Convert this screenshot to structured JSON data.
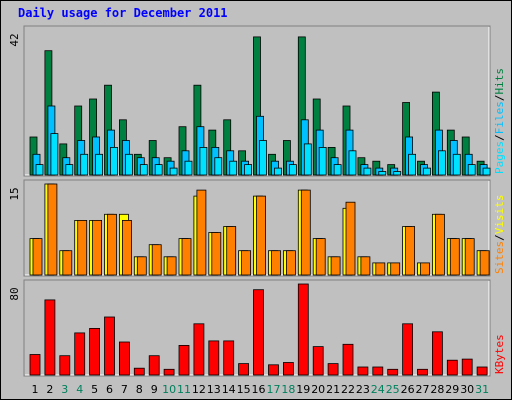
{
  "title": "Daily usage for December 2011",
  "colors": {
    "background": "#c0c0c0",
    "title": "#0000ff",
    "hits": "#008040",
    "files": "#00c0ff",
    "pages": "#00e0ff",
    "visits": "#ffff00",
    "sites": "#ff8000",
    "kbytes": "#ff0000",
    "weekday_label": "#000000",
    "weekend_label": "#00805c"
  },
  "chart_data": [
    {
      "type": "bar",
      "panel": "hits_files_pages",
      "ymax_label": "42",
      "ylim": [
        0,
        42
      ],
      "categories": [
        "1",
        "2",
        "3",
        "4",
        "5",
        "6",
        "7",
        "8",
        "9",
        "10",
        "11",
        "12",
        "13",
        "14",
        "15",
        "16",
        "17",
        "18",
        "19",
        "20",
        "21",
        "22",
        "23",
        "24",
        "25",
        "26",
        "27",
        "28",
        "29",
        "30",
        "31"
      ],
      "side_labels": [
        "Pages",
        "Files",
        "Hits"
      ],
      "series": [
        {
          "name": "Hits",
          "values": [
            11,
            36,
            9,
            20,
            22,
            26,
            16,
            6,
            10,
            5,
            14,
            26,
            13,
            16,
            7,
            40,
            6,
            10,
            40,
            22,
            8,
            20,
            5,
            4,
            3,
            21,
            4,
            24,
            13,
            11,
            4
          ]
        },
        {
          "name": "Files",
          "values": [
            6,
            20,
            5,
            10,
            11,
            13,
            10,
            5,
            5,
            4,
            7,
            14,
            8,
            7,
            4,
            17,
            4,
            4,
            16,
            13,
            5,
            13,
            3,
            2,
            2,
            11,
            3,
            13,
            10,
            6,
            3
          ]
        },
        {
          "name": "Pages",
          "values": [
            3,
            12,
            3,
            6,
            6,
            8,
            6,
            3,
            3,
            2,
            4,
            8,
            5,
            4,
            3,
            10,
            2,
            3,
            9,
            8,
            3,
            7,
            2,
            1,
            1,
            6,
            2,
            7,
            6,
            3,
            2
          ]
        }
      ]
    },
    {
      "type": "bar",
      "panel": "visits_sites",
      "ymax_label": "15",
      "ylim": [
        0,
        15
      ],
      "categories": [
        "1",
        "2",
        "3",
        "4",
        "5",
        "6",
        "7",
        "8",
        "9",
        "10",
        "11",
        "12",
        "13",
        "14",
        "15",
        "16",
        "17",
        "18",
        "19",
        "20",
        "21",
        "22",
        "23",
        "24",
        "25",
        "26",
        "27",
        "28",
        "29",
        "30",
        "31"
      ],
      "side_labels": [
        "Sites",
        "Visits"
      ],
      "series": [
        {
          "name": "Visits",
          "values": [
            6,
            15,
            4,
            9,
            9,
            10,
            10,
            3,
            5,
            3,
            6,
            13,
            7,
            8,
            4,
            13,
            4,
            4,
            14,
            6,
            3,
            11,
            3,
            2,
            2,
            8,
            2,
            10,
            6,
            6,
            4
          ]
        },
        {
          "name": "Sites",
          "values": [
            6,
            15,
            4,
            9,
            9,
            10,
            9,
            3,
            5,
            3,
            6,
            14,
            7,
            8,
            4,
            13,
            4,
            4,
            14,
            6,
            3,
            12,
            3,
            2,
            2,
            8,
            2,
            10,
            6,
            6,
            4
          ]
        }
      ]
    },
    {
      "type": "bar",
      "panel": "kbytes",
      "ymax_label": "80",
      "ylim": [
        0,
        80
      ],
      "categories": [
        "1",
        "2",
        "3",
        "4",
        "5",
        "6",
        "7",
        "8",
        "9",
        "10",
        "11",
        "12",
        "13",
        "14",
        "15",
        "16",
        "17",
        "18",
        "19",
        "20",
        "21",
        "22",
        "23",
        "24",
        "25",
        "26",
        "27",
        "28",
        "29",
        "30",
        "31"
      ],
      "side_labels": [
        "KBytes"
      ],
      "series": [
        {
          "name": "KBytes",
          "values": [
            18,
            66,
            17,
            37,
            41,
            51,
            29,
            6,
            17,
            5,
            26,
            45,
            30,
            30,
            10,
            75,
            9,
            11,
            80,
            25,
            10,
            27,
            7,
            7,
            5,
            45,
            5,
            38,
            13,
            14,
            7
          ]
        }
      ]
    }
  ],
  "x_labels": [
    "1",
    "2",
    "3",
    "4",
    "5",
    "6",
    "7",
    "8",
    "9",
    "10",
    "11",
    "12",
    "13",
    "14",
    "15",
    "16",
    "17",
    "18",
    "19",
    "20",
    "21",
    "22",
    "23",
    "24",
    "25",
    "26",
    "27",
    "28",
    "29",
    "30",
    "31"
  ],
  "weekend_days": [
    "3",
    "4",
    "10",
    "11",
    "17",
    "18",
    "24",
    "25",
    "31"
  ]
}
